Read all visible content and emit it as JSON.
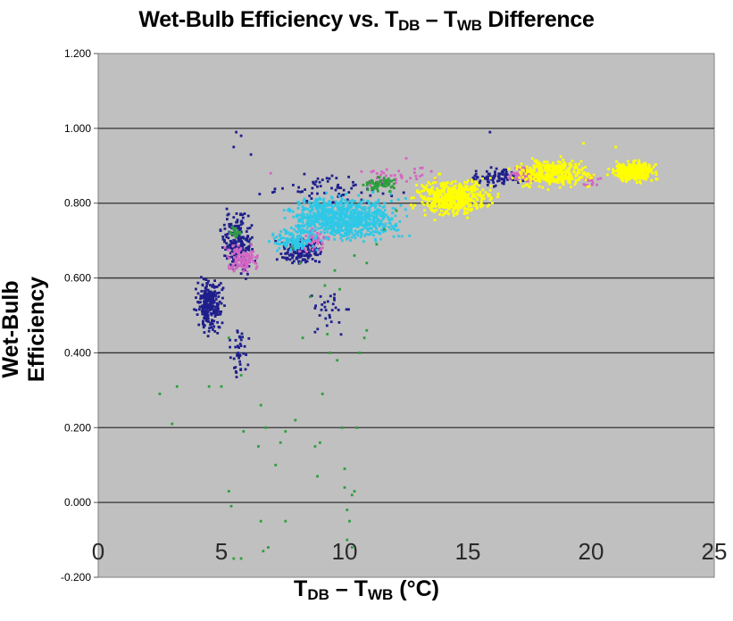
{
  "chart_data": {
    "type": "scatter",
    "title": {
      "main": "Wet-Bulb Efficiency vs. T",
      "sub1": "DB",
      "dash": " – T",
      "sub2": "WB",
      "tail": " Difference"
    },
    "xlabel": {
      "pre": "T",
      "sub1": "DB",
      "dash": " – T",
      "sub2": "WB",
      "tail": " (°C)"
    },
    "ylabel": "Wet-Bulb Efficiency",
    "xlim": [
      0,
      25
    ],
    "ylim": [
      -0.2,
      1.2
    ],
    "x_ticks": [
      "0",
      "5",
      "10",
      "15",
      "20",
      "25"
    ],
    "y_ticks": [
      "-0.200",
      "0.000",
      "0.200",
      "0.400",
      "0.600",
      "0.800",
      "1.000",
      "1.200"
    ],
    "grid": "horizontal",
    "plot_background": "#c0c0c0",
    "series": [
      {
        "color": "#1f1f8c",
        "clusters": [
          {
            "x": [
              3.8,
              5.2
            ],
            "y": [
              0.44,
              0.62
            ],
            "n": 260
          },
          {
            "x": [
              4.8,
              6.5
            ],
            "y": [
              0.58,
              0.8
            ],
            "n": 200
          },
          {
            "x": [
              7.0,
              9.5
            ],
            "y": [
              0.62,
              0.72
            ],
            "n": 140
          },
          {
            "x": [
              14.8,
              17.5
            ],
            "y": [
              0.84,
              0.9
            ],
            "n": 90
          },
          {
            "x": [
              6.0,
              13.0
            ],
            "y": [
              0.78,
              0.9
            ],
            "n": 70
          },
          {
            "x": [
              5.2,
              6.2
            ],
            "y": [
              0.3,
              0.5
            ],
            "n": 40
          },
          {
            "x": [
              8.2,
              10.5
            ],
            "y": [
              0.4,
              0.62
            ],
            "n": 30
          }
        ],
        "points": [
          [
            5.6,
            0.99
          ],
          [
            5.8,
            0.98
          ],
          [
            15.9,
            0.99
          ],
          [
            6.2,
            0.93
          ],
          [
            5.5,
            0.95
          ]
        ]
      },
      {
        "color": "#d466c4",
        "clusters": [
          {
            "x": [
              5.0,
              6.8
            ],
            "y": [
              0.6,
              0.7
            ],
            "n": 120
          },
          {
            "x": [
              8.0,
              9.5
            ],
            "y": [
              0.66,
              0.74
            ],
            "n": 50
          },
          {
            "x": [
              16.5,
              18.0
            ],
            "y": [
              0.85,
              0.9
            ],
            "n": 70
          },
          {
            "x": [
              19.5,
              20.5
            ],
            "y": [
              0.84,
              0.88
            ],
            "n": 20
          },
          {
            "x": [
              10.0,
              14.0
            ],
            "y": [
              0.84,
              0.92
            ],
            "n": 40
          }
        ],
        "points": [
          [
            7.0,
            0.88
          ],
          [
            12.5,
            0.92
          ]
        ]
      },
      {
        "color": "#2ec8e6",
        "clusters": [
          {
            "x": [
              7.0,
              13.0
            ],
            "y": [
              0.68,
              0.84
            ],
            "n": 900
          },
          {
            "x": [
              6.8,
              9.0
            ],
            "y": [
              0.66,
              0.74
            ],
            "n": 120
          }
        ],
        "points": []
      },
      {
        "color": "#ffff00",
        "clusters": [
          {
            "x": [
              12.4,
              16.5
            ],
            "y": [
              0.75,
              0.88
            ],
            "n": 520
          },
          {
            "x": [
              16.5,
              20.5
            ],
            "y": [
              0.83,
              0.93
            ],
            "n": 360
          },
          {
            "x": [
              20.5,
              22.9
            ],
            "y": [
              0.85,
              0.92
            ],
            "n": 320
          }
        ],
        "points": [
          [
            19.7,
            0.96
          ],
          [
            21.0,
            0.95
          ]
        ]
      },
      {
        "color": "#2e9e3e",
        "clusters": [
          {
            "x": [
              10.5,
              12.5
            ],
            "y": [
              0.82,
              0.88
            ],
            "n": 60
          },
          {
            "x": [
              5.2,
              6.0
            ],
            "y": [
              0.7,
              0.75
            ],
            "n": 20
          }
        ],
        "points": [
          [
            2.5,
            0.29
          ],
          [
            3.2,
            0.31
          ],
          [
            3.0,
            0.21
          ],
          [
            4.5,
            0.31
          ],
          [
            5.0,
            0.31
          ],
          [
            5.3,
            0.44
          ],
          [
            5.8,
            0.34
          ],
          [
            5.3,
            0.03
          ],
          [
            5.4,
            -0.01
          ],
          [
            5.5,
            -0.15
          ],
          [
            5.8,
            -0.15
          ],
          [
            5.9,
            0.19
          ],
          [
            6.6,
            0.26
          ],
          [
            6.8,
            0.2
          ],
          [
            6.5,
            0.15
          ],
          [
            6.6,
            -0.05
          ],
          [
            6.9,
            -0.12
          ],
          [
            6.7,
            -0.13
          ],
          [
            7.2,
            0.1
          ],
          [
            7.4,
            0.16
          ],
          [
            7.6,
            -0.05
          ],
          [
            7.6,
            0.19
          ],
          [
            8.0,
            0.22
          ],
          [
            8.3,
            0.44
          ],
          [
            8.8,
            0.15
          ],
          [
            8.9,
            0.07
          ],
          [
            9.0,
            0.16
          ],
          [
            9.1,
            0.29
          ],
          [
            9.3,
            0.45
          ],
          [
            9.4,
            0.4
          ],
          [
            9.6,
            0.62
          ],
          [
            9.7,
            0.38
          ],
          [
            9.8,
            0.57
          ],
          [
            9.9,
            0.2
          ],
          [
            10.0,
            0.09
          ],
          [
            10.0,
            0.04
          ],
          [
            10.1,
            -0.02
          ],
          [
            10.2,
            -0.05
          ],
          [
            10.1,
            -0.1
          ],
          [
            10.3,
            0.02
          ],
          [
            10.4,
            0.03
          ],
          [
            10.3,
            -0.12
          ],
          [
            10.5,
            0.2
          ],
          [
            10.6,
            0.4
          ],
          [
            10.8,
            0.44
          ],
          [
            10.9,
            0.46
          ],
          [
            8.6,
            0.55
          ],
          [
            9.2,
            0.58
          ],
          [
            10.4,
            0.66
          ],
          [
            10.9,
            0.64
          ],
          [
            11.3,
            0.69
          ],
          [
            11.6,
            0.73
          ],
          [
            12.1,
            0.78
          ],
          [
            8.2,
            0.64
          ],
          [
            7.9,
            0.68
          ]
        ]
      }
    ]
  }
}
